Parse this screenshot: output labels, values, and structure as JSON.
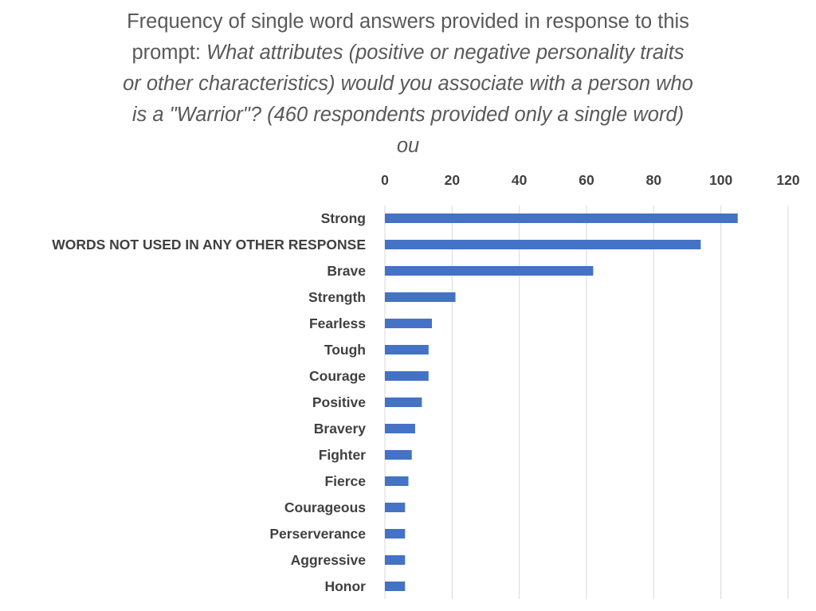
{
  "chart_data": {
    "type": "bar",
    "orientation": "horizontal",
    "title_lines": [
      {
        "normal": "Frequency of single word answers provided in response to this",
        "italic": ""
      },
      {
        "normal": "prompt: ",
        "italic": "What attributes (positive or negative personality traits"
      },
      {
        "normal": "",
        "italic": "or other characteristics) would you associate with a person who"
      },
      {
        "normal": "",
        "italic": "is a \"Warrior\"? (460 respondents provided only a single word)"
      },
      {
        "normal": "",
        "italic": "ou"
      }
    ],
    "categories": [
      "Strong",
      "WORDS NOT USED IN ANY OTHER RESPONSE",
      "Brave",
      "Strength",
      "Fearless",
      "Tough",
      "Courage",
      "Positive",
      "Bravery",
      "Fighter",
      "Fierce",
      "Courageous",
      "Perserverance",
      "Aggressive",
      "Honor"
    ],
    "values": [
      105,
      94,
      62,
      21,
      14,
      13,
      13,
      11,
      9,
      8,
      7,
      6,
      6,
      6,
      6
    ],
    "xlim": [
      0,
      120
    ],
    "ticks": [
      "0",
      "20",
      "40",
      "60",
      "80",
      "100",
      "120"
    ],
    "tick_values": [
      0,
      20,
      40,
      60,
      80,
      100,
      120
    ],
    "axis_position": "top",
    "grid": true,
    "bar_color": "#4472c4"
  }
}
